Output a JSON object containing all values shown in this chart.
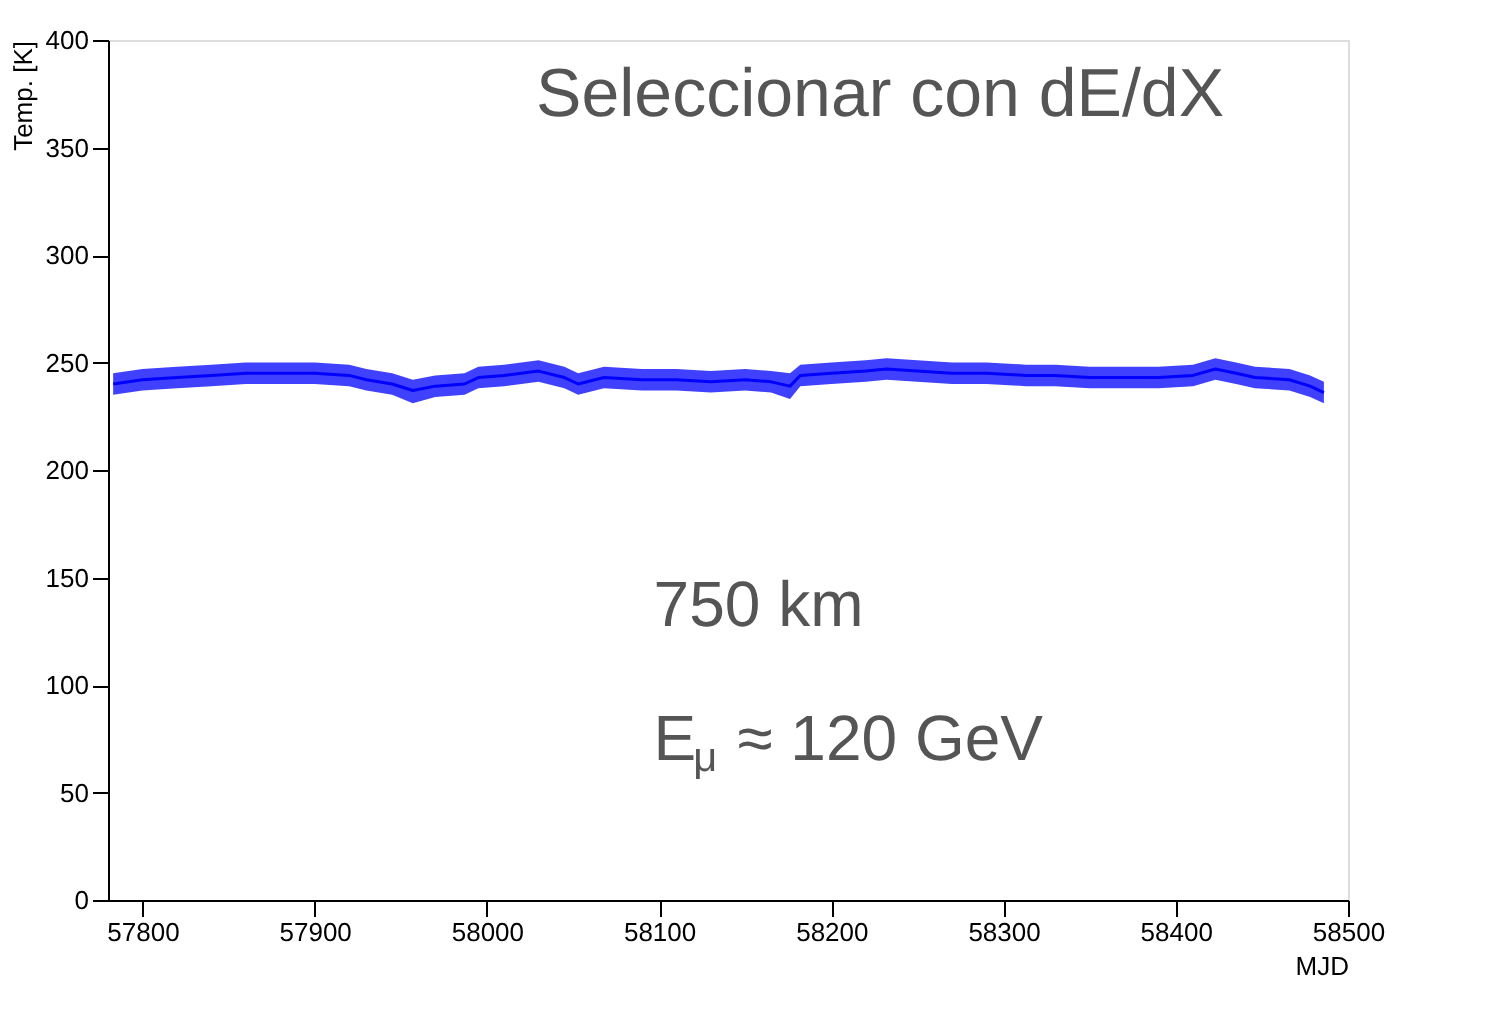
{
  "chart_data": {
    "type": "line",
    "xlabel": "MJD",
    "ylabel": "Temp. [K]",
    "annotations": [
      "Seleccionar con dE/dX",
      "750 km",
      "E$_{μ}$ ≈ 120 GeV"
    ],
    "xlim": [
      57780,
      58500
    ],
    "xticks": [
      57800,
      57900,
      58000,
      58100,
      58200,
      58300,
      58400,
      58500
    ],
    "ylim": [
      0,
      400
    ],
    "yticks": [
      0,
      50,
      100,
      150,
      200,
      250,
      300,
      350,
      400
    ],
    "grid": false,
    "marker": "none",
    "line_style": "solid",
    "series": [
      {
        "color": "#0000ff",
        "x": [
          57783,
          57800,
          57820,
          57840,
          57860,
          57880,
          57900,
          57920,
          57930,
          57945,
          57957,
          57970,
          57987,
          57995,
          58010,
          58030,
          58045,
          58053,
          58068,
          58090,
          58110,
          58130,
          58150,
          58165,
          58176,
          58182,
          58200,
          58220,
          58232,
          58250,
          58270,
          58290,
          58313,
          58330,
          58350,
          58370,
          58390,
          58410,
          58423,
          58435,
          58446,
          58466,
          58478,
          58486
        ],
        "values": [
          240,
          242,
          243,
          244,
          245,
          245,
          245,
          244,
          242,
          240,
          237,
          239,
          240,
          243,
          244,
          246,
          243,
          240,
          243,
          242,
          242,
          241,
          242,
          241,
          239,
          244,
          245,
          246,
          247,
          246,
          245,
          245,
          244,
          244,
          243,
          243,
          243,
          244,
          247,
          245,
          243,
          242,
          239,
          236
        ],
        "lower": [
          235,
          237,
          238,
          239,
          240,
          240,
          240,
          239,
          237,
          235,
          231,
          234,
          235,
          238,
          239,
          241,
          238,
          235,
          238,
          237,
          237,
          236,
          237,
          236,
          233,
          239,
          240,
          241,
          242,
          241,
          240,
          240,
          239,
          239,
          238,
          238,
          238,
          239,
          242,
          240,
          238,
          237,
          234,
          231
        ],
        "upper": [
          245,
          247,
          248,
          249,
          250,
          250,
          250,
          249,
          247,
          245,
          242,
          244,
          245,
          248,
          249,
          251,
          248,
          245,
          248,
          247,
          247,
          246,
          247,
          246,
          245,
          249,
          250,
          251,
          252,
          251,
          250,
          250,
          249,
          249,
          248,
          248,
          248,
          249,
          252,
          250,
          248,
          247,
          244,
          241
        ]
      }
    ]
  }
}
